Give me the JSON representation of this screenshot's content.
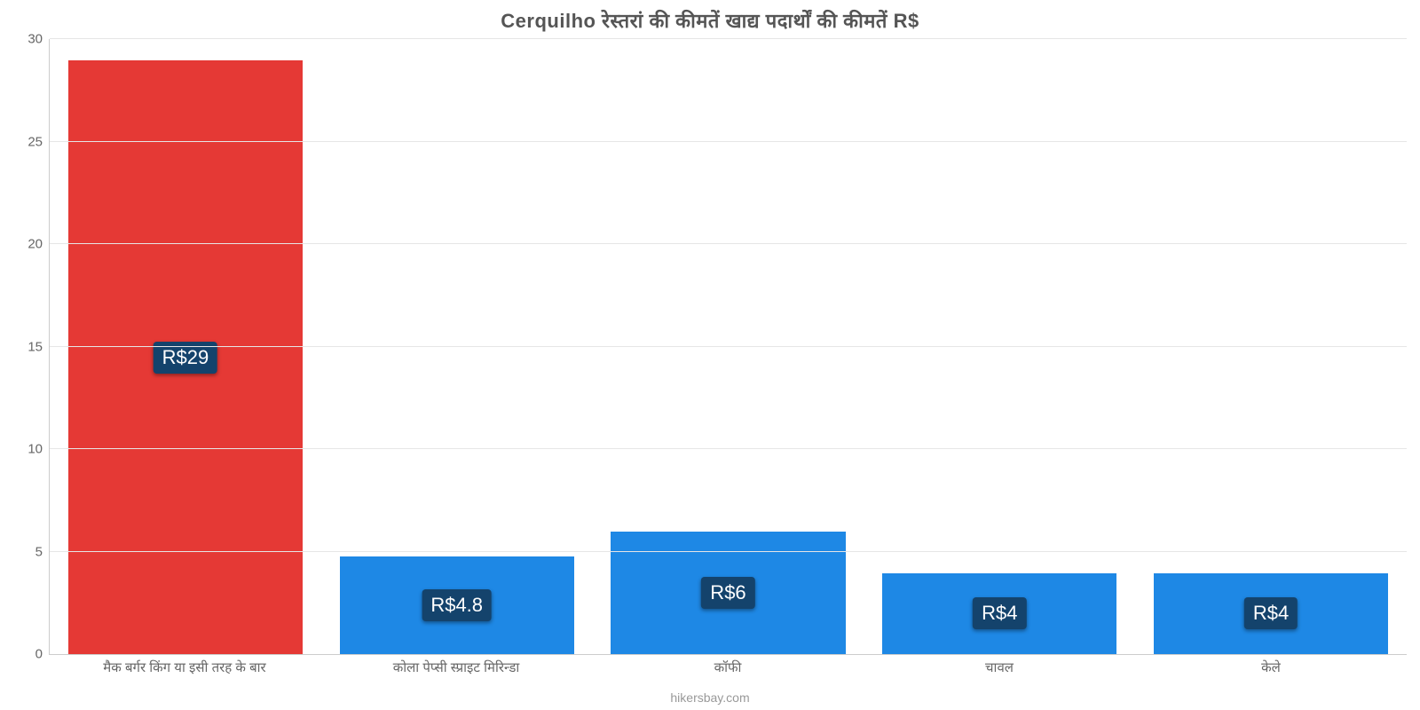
{
  "chart": {
    "type": "bar",
    "title": "Cerquilho रेस्तरां    की    कीमतें    खाद्य    पदार्थों    की    कीमतें    R$",
    "title_fontsize": 22,
    "title_color": "#555555",
    "background_color": "#ffffff",
    "grid_color": "#e6e6e6",
    "axis_color": "#cccccc",
    "label_color": "#666666",
    "label_fontsize": 15,
    "badge_bg": "#14436c",
    "badge_color": "#ffffff",
    "badge_fontsize": 22,
    "ylim": [
      0,
      30
    ],
    "ytick_step": 5,
    "yticks": [
      0,
      5,
      10,
      15,
      20,
      25,
      30
    ],
    "bar_width": 0.87,
    "categories": [
      "मैक बर्गर किंग या इसी तरह के बार",
      "कोला पेप्सी स्प्राइट मिरिन्डा",
      "कॉफी",
      "चावल",
      "केले"
    ],
    "values": [
      29,
      4.8,
      6,
      4,
      4
    ],
    "value_labels": [
      "R$29",
      "R$4.8",
      "R$6",
      "R$4",
      "R$4"
    ],
    "bar_colors": [
      "#e53935",
      "#1e88e5",
      "#1e88e5",
      "#1e88e5",
      "#1e88e5"
    ],
    "footer": "hikersbay.com",
    "footer_color": "#999999",
    "footer_fontsize": 14
  }
}
